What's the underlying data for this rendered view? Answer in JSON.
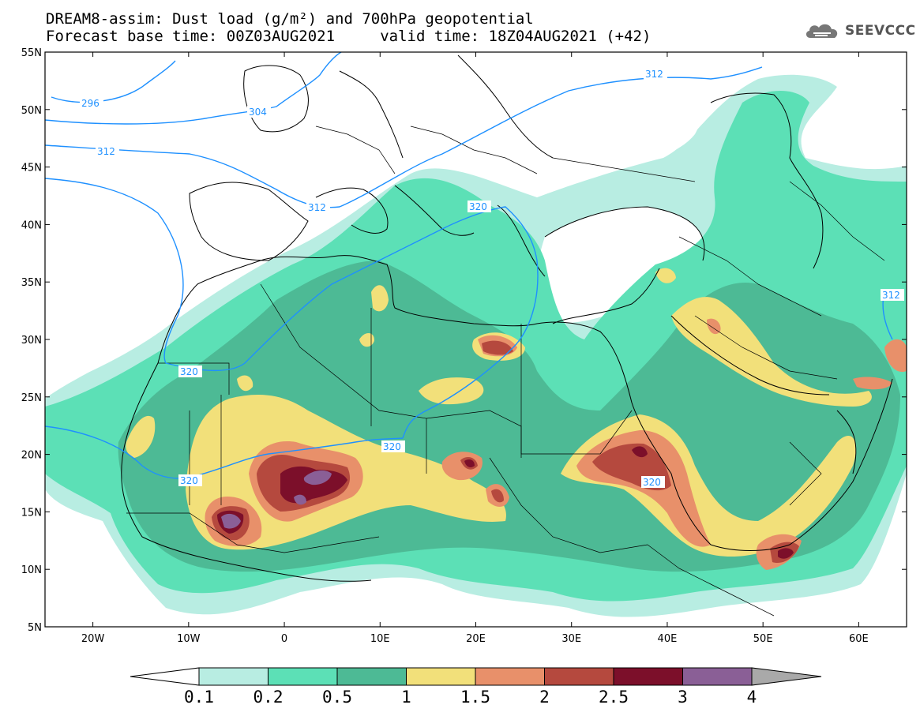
{
  "header": {
    "title_line1": "DREAM8-assim: Dust load (g/m²) and 700hPa geopotential",
    "title_line2": "Forecast base time: 00Z03AUG2021     valid time: 18Z04AUG2021 (+42)"
  },
  "logo": {
    "text": "SEEVCCC",
    "icon": "cloud-icon"
  },
  "map": {
    "lon_range": [
      -25,
      65
    ],
    "lat_range": [
      5,
      55
    ],
    "lat_ticks": [
      "55N",
      "50N",
      "45N",
      "40N",
      "35N",
      "30N",
      "25N",
      "20N",
      "15N",
      "10N",
      "5N"
    ],
    "lon_ticks": [
      "20W",
      "10W",
      "0",
      "10E",
      "20E",
      "30E",
      "40E",
      "50E",
      "60E"
    ]
  },
  "colorbar": {
    "labels": [
      "0.1",
      "0.2",
      "0.5",
      "1",
      "1.5",
      "2",
      "2.5",
      "3",
      "4"
    ],
    "colors": [
      "#ffffff",
      "#b8ede2",
      "#5ce0b6",
      "#4dba95",
      "#f2e07a",
      "#e8906a",
      "#b5493e",
      "#7c0f2a",
      "#8a5f96",
      "#a9a9a9"
    ]
  },
  "geopotential_contours": {
    "color": "#1e90ff",
    "labels": [
      "296",
      "304",
      "312",
      "312",
      "320",
      "312",
      "320",
      "320",
      "320",
      "320",
      "312"
    ]
  }
}
